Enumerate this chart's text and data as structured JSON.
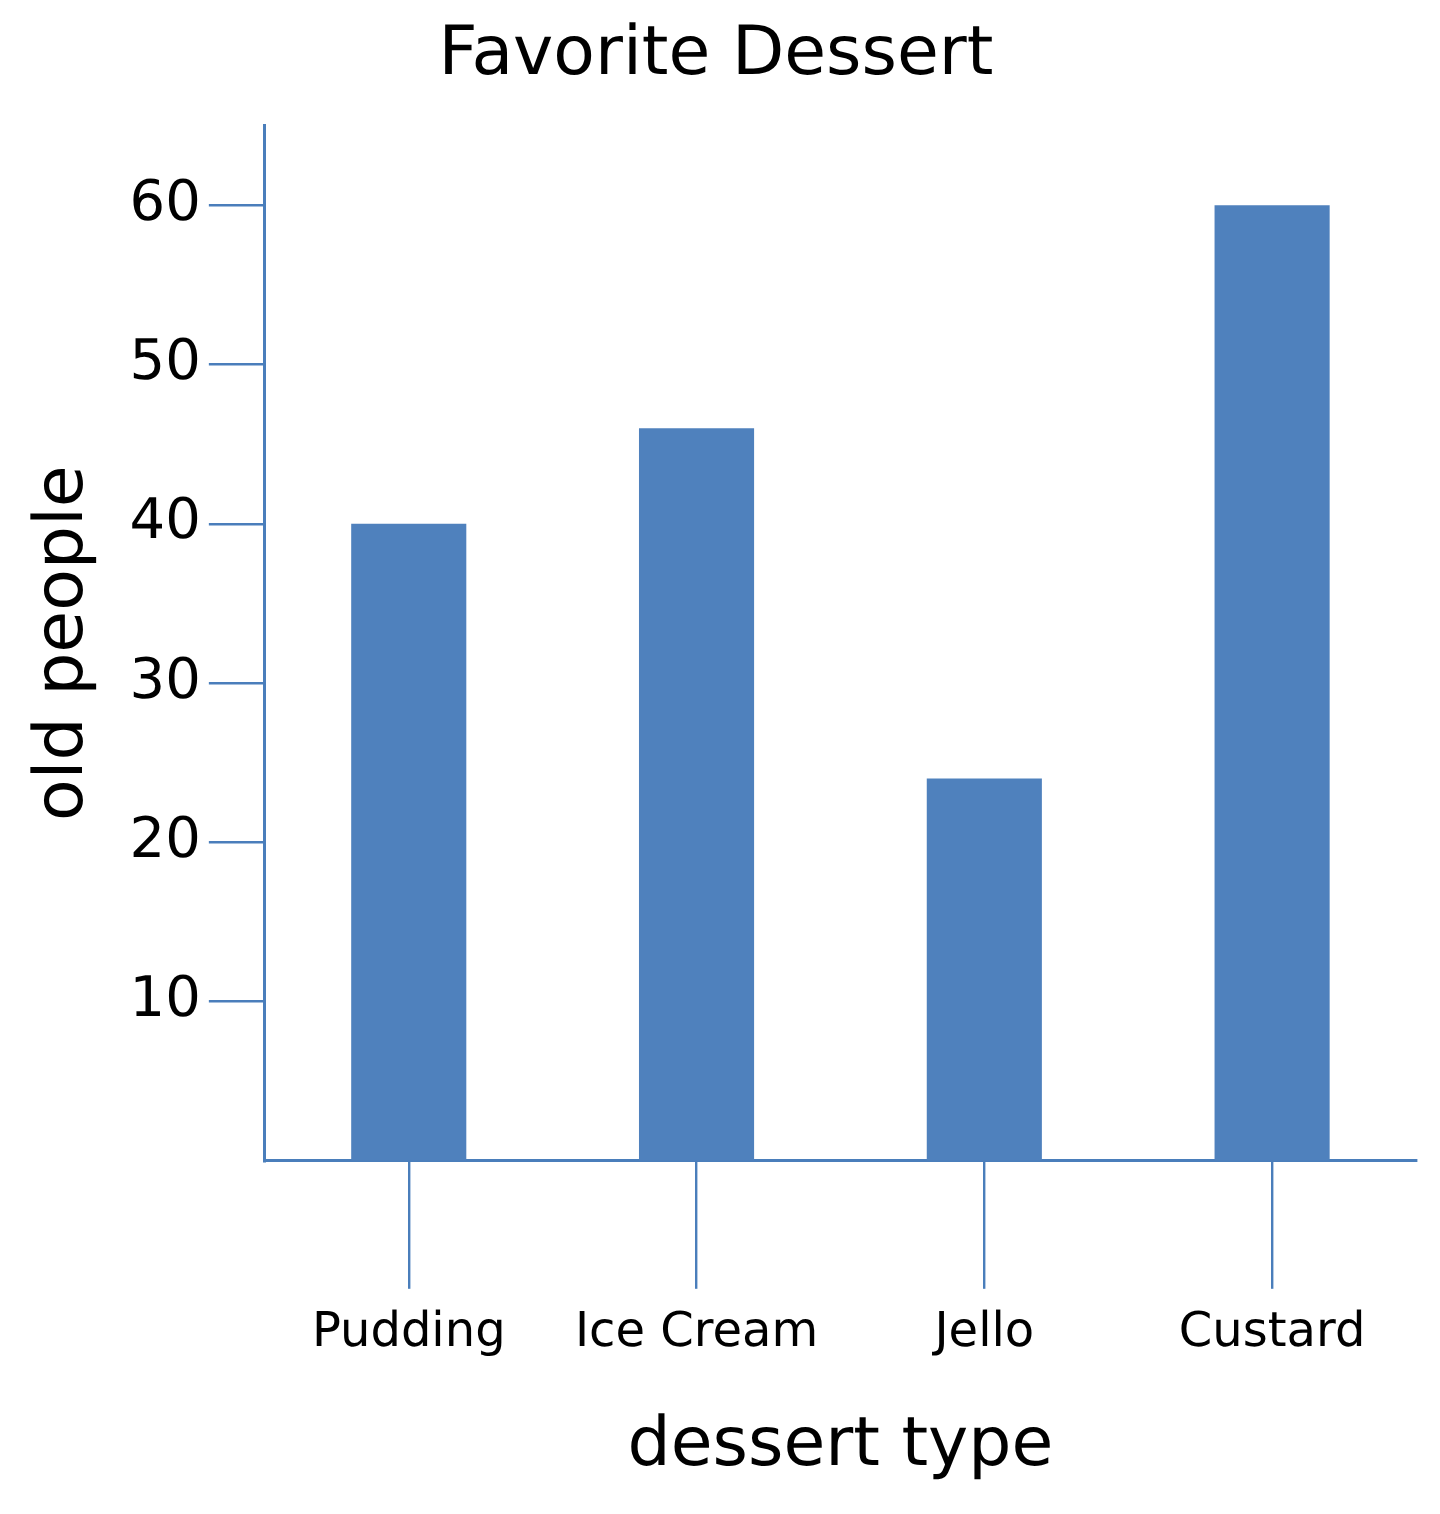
{
  "chart_data": {
    "type": "bar",
    "title": "Favorite Dessert",
    "xlabel": "dessert type",
    "ylabel": "old people",
    "categories": [
      "Pudding",
      "Ice Cream",
      "Jello",
      "Custard"
    ],
    "values": [
      40,
      46,
      24,
      60
    ],
    "color": "#4f81bd",
    "ylim": [
      0,
      65
    ],
    "yticks": [
      10,
      20,
      30,
      40,
      50,
      60
    ]
  }
}
